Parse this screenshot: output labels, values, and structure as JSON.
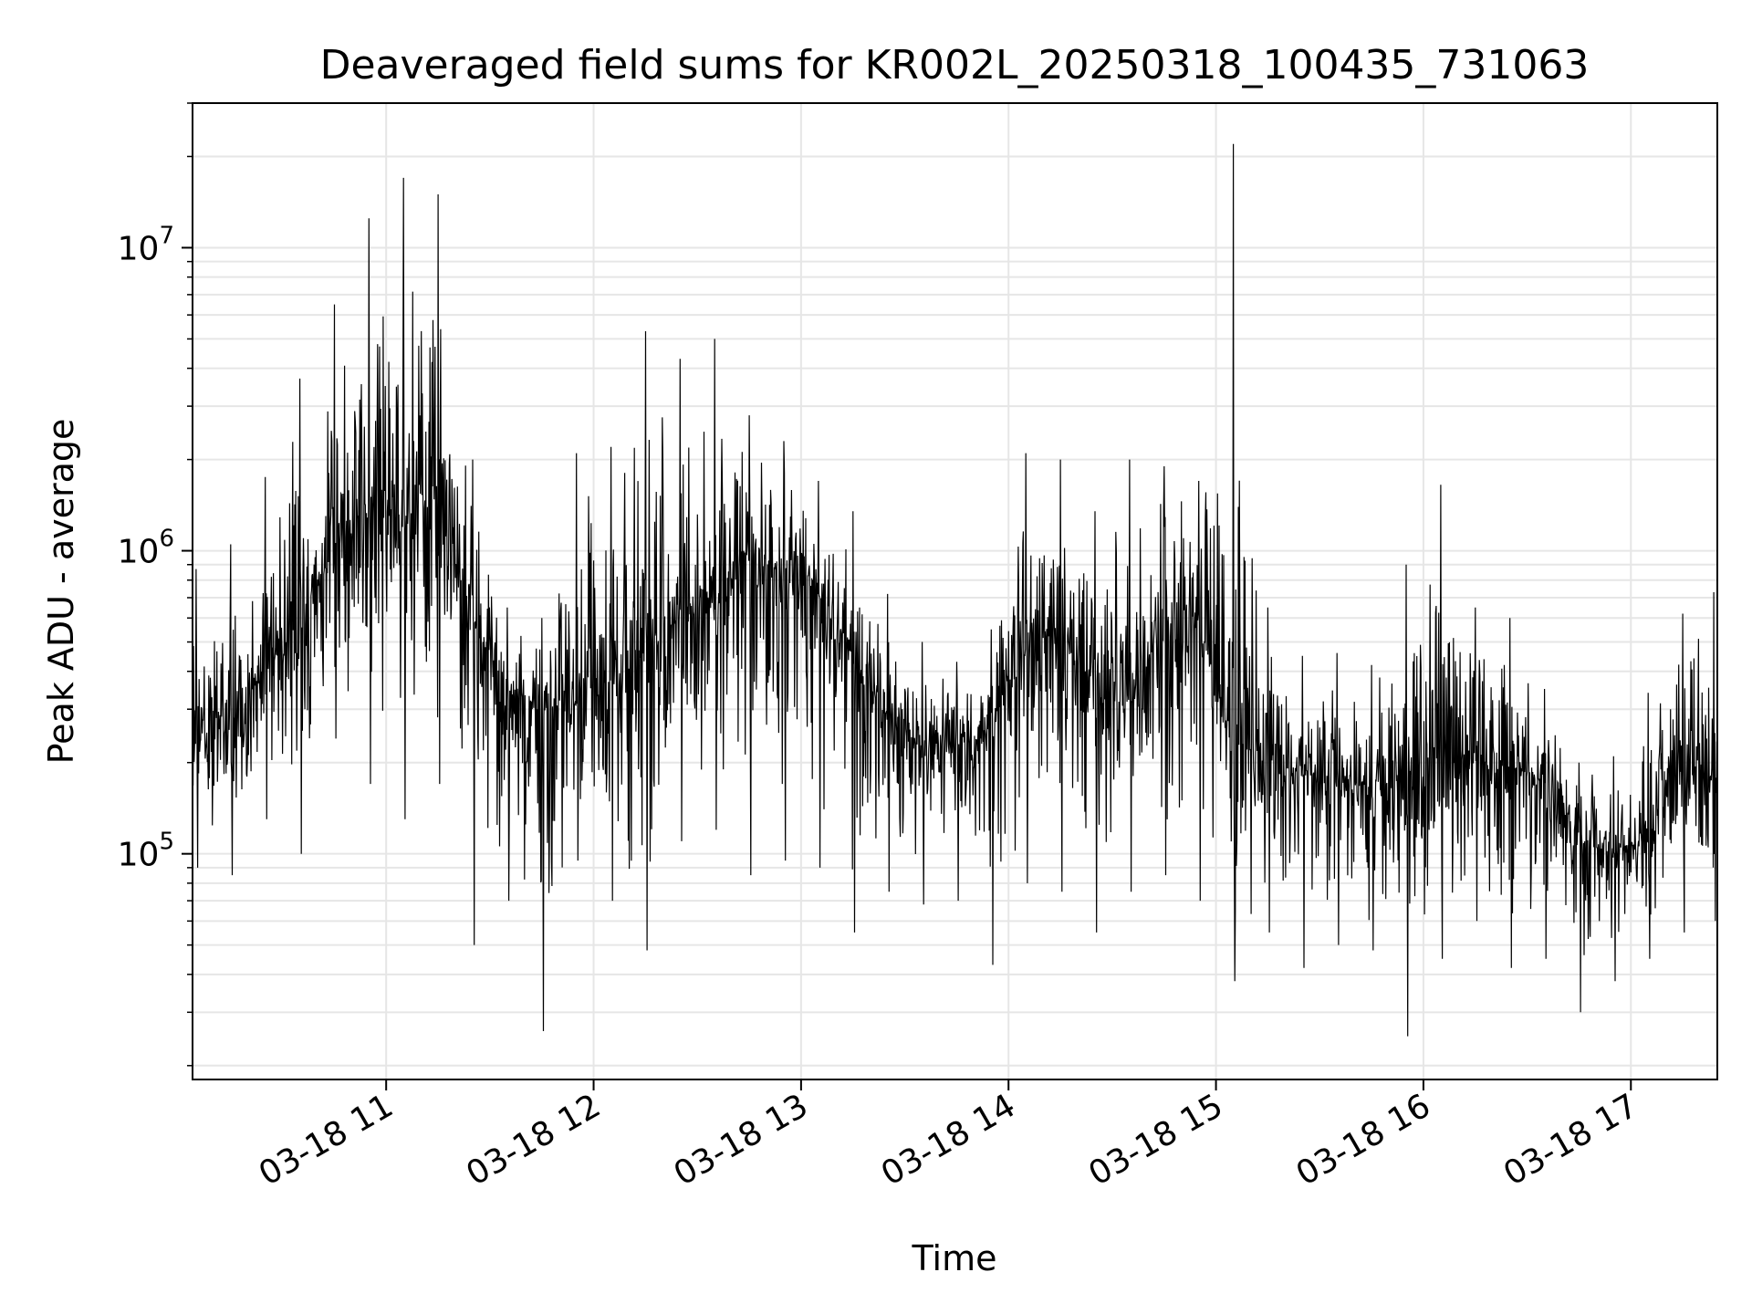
{
  "chart_data": {
    "type": "line",
    "title": "Deaveraged field sums for KR002L_20250318_100435_731063",
    "xlabel": "Time",
    "ylabel": "Peak ADU - average",
    "yscale": "log",
    "ylim": [
      18000,
      30000000
    ],
    "xlim": [
      "2025-03-18 10:04",
      "2025-03-18 17:25"
    ],
    "grid": true,
    "line_color": "#000000",
    "grid_color": "#e6e6e6",
    "x_ticks": [
      {
        "value": "2025-03-18 11:00",
        "label": "03-18 11"
      },
      {
        "value": "2025-03-18 12:00",
        "label": "03-18 12"
      },
      {
        "value": "2025-03-18 13:00",
        "label": "03-18 13"
      },
      {
        "value": "2025-03-18 14:00",
        "label": "03-18 14"
      },
      {
        "value": "2025-03-18 15:00",
        "label": "03-18 15"
      },
      {
        "value": "2025-03-18 16:00",
        "label": "03-18 16"
      },
      {
        "value": "2025-03-18 17:00",
        "label": "03-18 17"
      }
    ],
    "y_ticks": [
      {
        "value": 100000,
        "base": "10",
        "exp": "5"
      },
      {
        "value": 1000000,
        "base": "10",
        "exp": "6"
      },
      {
        "value": 10000000,
        "base": "10",
        "exp": "7"
      }
    ],
    "series": [
      {
        "x": [
          "2025-03-18 10:05",
          "2025-03-18 10:15",
          "2025-03-18 10:25",
          "2025-03-18 10:35",
          "2025-03-18 10:45",
          "2025-03-18 10:55",
          "2025-03-18 11:05",
          "2025-03-18 11:15",
          "2025-03-18 11:25",
          "2025-03-18 11:35",
          "2025-03-18 11:45",
          "2025-03-18 11:55",
          "2025-03-18 12:05",
          "2025-03-18 12:15",
          "2025-03-18 12:25",
          "2025-03-18 12:35",
          "2025-03-18 12:45",
          "2025-03-18 12:55",
          "2025-03-18 13:05",
          "2025-03-18 13:15",
          "2025-03-18 13:25",
          "2025-03-18 13:35",
          "2025-03-18 13:45",
          "2025-03-18 13:55",
          "2025-03-18 14:05",
          "2025-03-18 14:15",
          "2025-03-18 14:25",
          "2025-03-18 14:35",
          "2025-03-18 14:45",
          "2025-03-18 14:55",
          "2025-03-18 15:05",
          "2025-03-18 15:15",
          "2025-03-18 15:25",
          "2025-03-18 15:35",
          "2025-03-18 15:45",
          "2025-03-18 15:55",
          "2025-03-18 16:05",
          "2025-03-18 16:15",
          "2025-03-18 16:25",
          "2025-03-18 16:35",
          "2025-03-18 16:45",
          "2025-03-18 16:55",
          "2025-03-18 17:05",
          "2025-03-18 17:15",
          "2025-03-18 17:24"
        ],
        "y": [
          250000,
          260000,
          400000,
          600000,
          1000000,
          1500000,
          1200000,
          1500000,
          600000,
          350000,
          300000,
          320000,
          380000,
          500000,
          600000,
          700000,
          800000,
          900000,
          700000,
          450000,
          280000,
          220000,
          230000,
          250000,
          500000,
          550000,
          350000,
          300000,
          600000,
          550000,
          250000,
          200000,
          180000,
          170000,
          160000,
          150000,
          220000,
          200000,
          190000,
          180000,
          110000,
          100000,
          110000,
          200000,
          180000
        ],
        "high": [
          870000,
          1050000,
          1750000,
          3700000,
          6500000,
          12500000,
          17000000,
          15000000,
          2000000,
          650000,
          600000,
          2100000,
          2200000,
          5300000,
          4300000,
          5000000,
          2800000,
          2300000,
          1700000,
          1350000,
          720000,
          500000,
          430000,
          550000,
          2100000,
          2000000,
          1350000,
          2000000,
          1900000,
          1700000,
          22000000,
          650000,
          450000,
          460000,
          420000,
          900000,
          1650000,
          650000,
          600000,
          350000,
          200000,
          210000,
          340000,
          620000,
          730000
        ],
        "low": [
          90000,
          85000,
          130000,
          100000,
          240000,
          170000,
          130000,
          170000,
          50000,
          70000,
          26000,
          95000,
          70000,
          48000,
          110000,
          120000,
          85000,
          95000,
          90000,
          55000,
          75000,
          68000,
          70000,
          43000,
          80000,
          75000,
          55000,
          75000,
          85000,
          70000,
          38000,
          55000,
          42000,
          50000,
          48000,
          25000,
          45000,
          60000,
          42000,
          45000,
          30000,
          38000,
          45000,
          55000,
          60000
        ]
      }
    ]
  }
}
